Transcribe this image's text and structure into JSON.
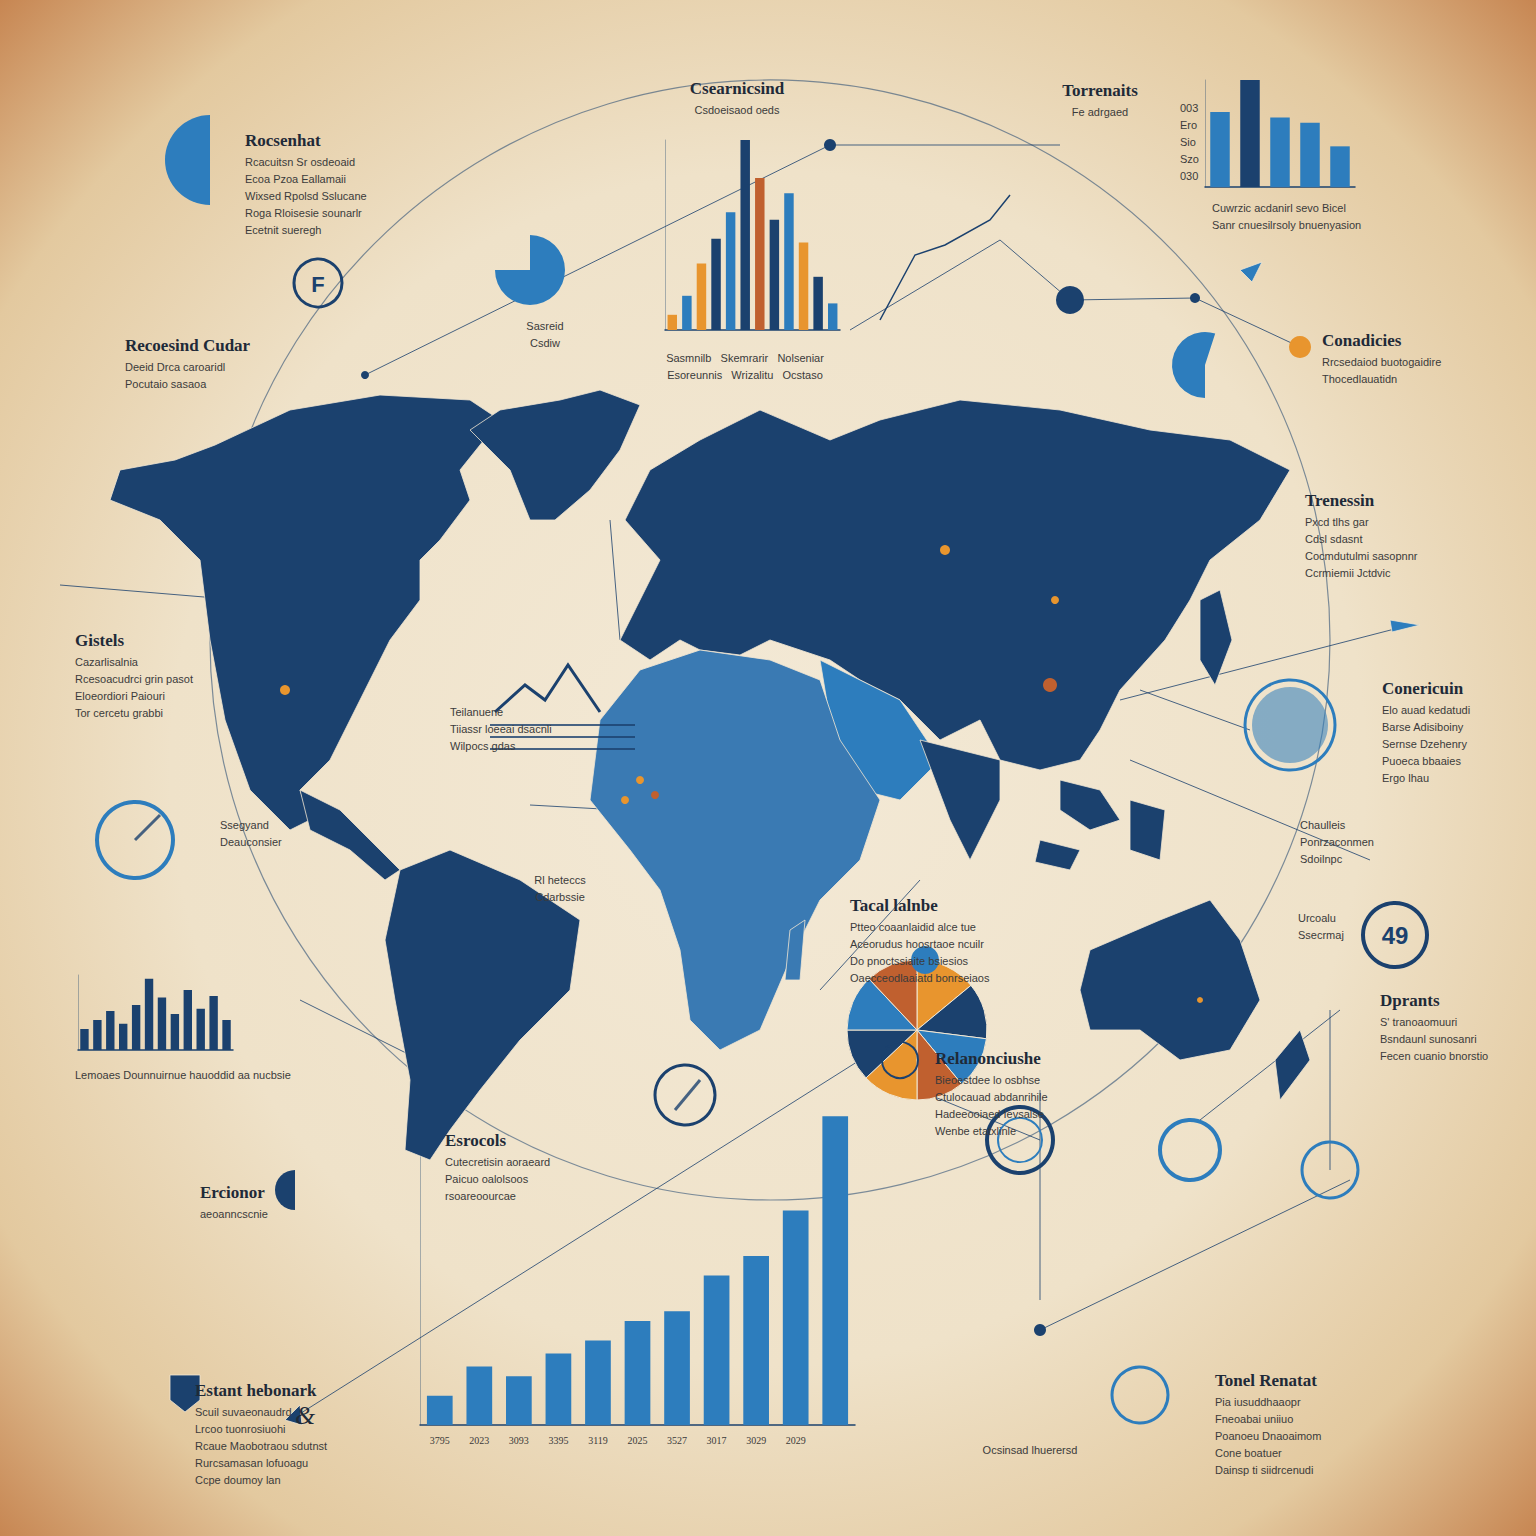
{
  "chart_data": [
    {
      "type": "bar",
      "categories": [
        null,
        null,
        null,
        null,
        null,
        null,
        null,
        null,
        null,
        null,
        null,
        null
      ],
      "values": [
        8,
        18,
        35,
        48,
        62,
        100,
        80,
        58,
        72,
        46,
        28,
        14
      ],
      "colors": [
        "#e8952e",
        "#2d7dbd",
        "#e8952e",
        "#1b416e",
        "#2d7dbd",
        "#1b416e",
        "#c0602f",
        "#1b416e",
        "#2d7dbd",
        "#e8952e",
        "#1b416e",
        "#2d7dbd"
      ],
      "ylim": [
        0,
        100
      ],
      "tick_labels": false,
      "grid": false
    },
    {
      "type": "bar",
      "categories": [
        null,
        null,
        null,
        null,
        null
      ],
      "values": [
        70,
        100,
        65,
        60,
        38
      ],
      "colors": [
        "#2d7dbd",
        "#1b416e",
        "#2d7dbd",
        "#2d7dbd",
        "#2d7dbd"
      ],
      "ylim": [
        0,
        100
      ],
      "tick_labels": false,
      "grid": false
    },
    {
      "type": "bar",
      "categories": [
        null,
        null,
        null,
        null,
        null,
        null,
        null,
        null,
        null,
        null,
        null,
        null
      ],
      "values": [
        28,
        40,
        52,
        35,
        60,
        95,
        70,
        48,
        80,
        55,
        72,
        40
      ],
      "color": "#1b416e",
      "ylim": [
        0,
        100
      ],
      "tick_labels": false,
      "grid": false
    },
    {
      "type": "bar",
      "categories": [
        "3795",
        "2023",
        "3093",
        "3395",
        "3119",
        "2025",
        "3527",
        "3017",
        "3029",
        "2029",
        null
      ],
      "values": [
        9,
        18,
        15,
        22,
        26,
        32,
        35,
        46,
        52,
        66,
        95
      ],
      "color": "#2d7dbd",
      "ylim": [
        0,
        100
      ],
      "tick_labels": "x",
      "grid": false
    },
    {
      "type": "pie",
      "values": [
        14,
        13,
        12,
        11,
        13,
        12,
        13,
        12
      ],
      "colors": [
        "#e8952e",
        "#1b416e",
        "#2d7dbd",
        "#c0602f",
        "#e8952e",
        "#1b416e",
        "#2d7dbd",
        "#c0602f"
      ]
    }
  ],
  "panels": [
    {
      "title": "Rocsenhat",
      "lines": [
        "Rcacuitsn Sr osdeoaid",
        "Ecoa Pzoa Eallamaii",
        "Wixsed Rpolsd Sslucane",
        "Roga Rloisesie sounarlr",
        "Ecetnit sueregh"
      ]
    },
    {
      "title": "Csearnicsind",
      "lines": [
        "Csdoeisaod oeds"
      ]
    },
    {
      "title": "Torrenaits",
      "lines": [
        "Fe adrgaed"
      ]
    },
    {
      "lines": [
        "003",
        "Ero",
        "Sio",
        "Szo",
        "030"
      ]
    },
    {
      "lines": [
        "Cuwrzic acdanirl sevo Bicel",
        "Sanr cnuesilrsoly bnuenyasion"
      ]
    },
    {
      "title": "Recoesind Cudar",
      "lines": [
        "Deeid Drca caroaridl",
        "Pocutaio sasaoa"
      ]
    },
    {
      "lines": [
        "Sasreid",
        "Csdiw"
      ]
    },
    {
      "lines": [
        "Sasmnilb   Skemrarir   Nolseniar",
        "Esoreunnis   Wrizalitu   Ocstaso"
      ]
    },
    {
      "title": "Conadicies",
      "lines": [
        "Rrcsedaiod buotogaidire",
        "Thocedlauatidn"
      ]
    },
    {
      "title": "Trenessin",
      "lines": [
        "Pxcd tlhs gar",
        "Cdsl sdasnt",
        "Cocmdutulmi sasopnnr",
        "Ccrmiemii Jctdvic"
      ]
    },
    {
      "title": "Gistels",
      "lines": [
        "Cazarlisalnia",
        "Rcesoacudrci grin pasot",
        "Eloeordiori Paiouri",
        "Tor cercetu grabbi"
      ]
    },
    {
      "title": "Conericuin",
      "lines": [
        "Elo auad kedatudi",
        "Barse Adisiboiny",
        "Sernse Dzehenry",
        "Puoeca bbaaies",
        "Ergo lhau"
      ]
    },
    {
      "lines": [
        "Teilanuene",
        "Tiiassr loeeai dsacnli",
        "Wilpocs gdas"
      ]
    },
    {
      "lines": [
        "Rl heteccs",
        "Cdarbssie"
      ]
    },
    {
      "title": "Tacal lalnbe",
      "lines": [
        "Ptteo coaanlaidid alce tue",
        "Aceorudus hoosrtaoe ncuilr",
        "Do pnoctssiaite bsiesios",
        "Oaecceodlaaiatd bonrseiaos"
      ]
    },
    {
      "lines": [
        "Ssegyand",
        "Deauconsier"
      ]
    },
    {
      "title": "Dprants",
      "lines": [
        "S' tranoaomuuri",
        "Bsndaunl sunosanri",
        "Fecen cuanio bnorstio"
      ]
    },
    {
      "title": "Relanonciushe",
      "lines": [
        "Bieoestdee lo osbhse",
        "Ctulocauad abdanrihile",
        "Hadeeooiaed Ievsalse",
        "Wenbe etatxlinle"
      ]
    },
    {
      "lines": [
        "Lemoaes Dounnuirnue hauoddid aa nucbsie"
      ]
    },
    {
      "title": "Esrocols",
      "lines": [
        "Cutecretisin aoraeard",
        "Paicuo oalolsoos",
        "rsoareoourcae"
      ]
    },
    {
      "title": "Ercionor",
      "lines": [
        "aeoanncscnie"
      ]
    },
    {
      "title": "Estant hebonark",
      "lines": [
        "Scuil suvaeonaudrd",
        "Lrcoo tuonrosiuohi",
        "Rcaue Maobotraou sdutnst",
        "Rurcsamasan lofuoagu",
        "Ccpe doumoy lan"
      ]
    },
    {
      "title": "Tonel Renatat",
      "lines": [
        "Pia iusuddhaaopr",
        "Fneoabai uniiuo",
        "Poanoeu Dnaoaimom",
        "Cone boatuer",
        "Dainsp ti siidrcenudi"
      ]
    },
    {
      "lines": [
        "Ocsinsad lhuerersd"
      ]
    },
    {
      "lines": [
        "Chaulleis",
        "Ponrzaconmen",
        "Sdoilnpc"
      ]
    },
    {
      "lines": [
        "Urcoalu",
        "Ssecrmaj"
      ]
    }
  ],
  "badges": [
    "49",
    "&",
    "F"
  ]
}
